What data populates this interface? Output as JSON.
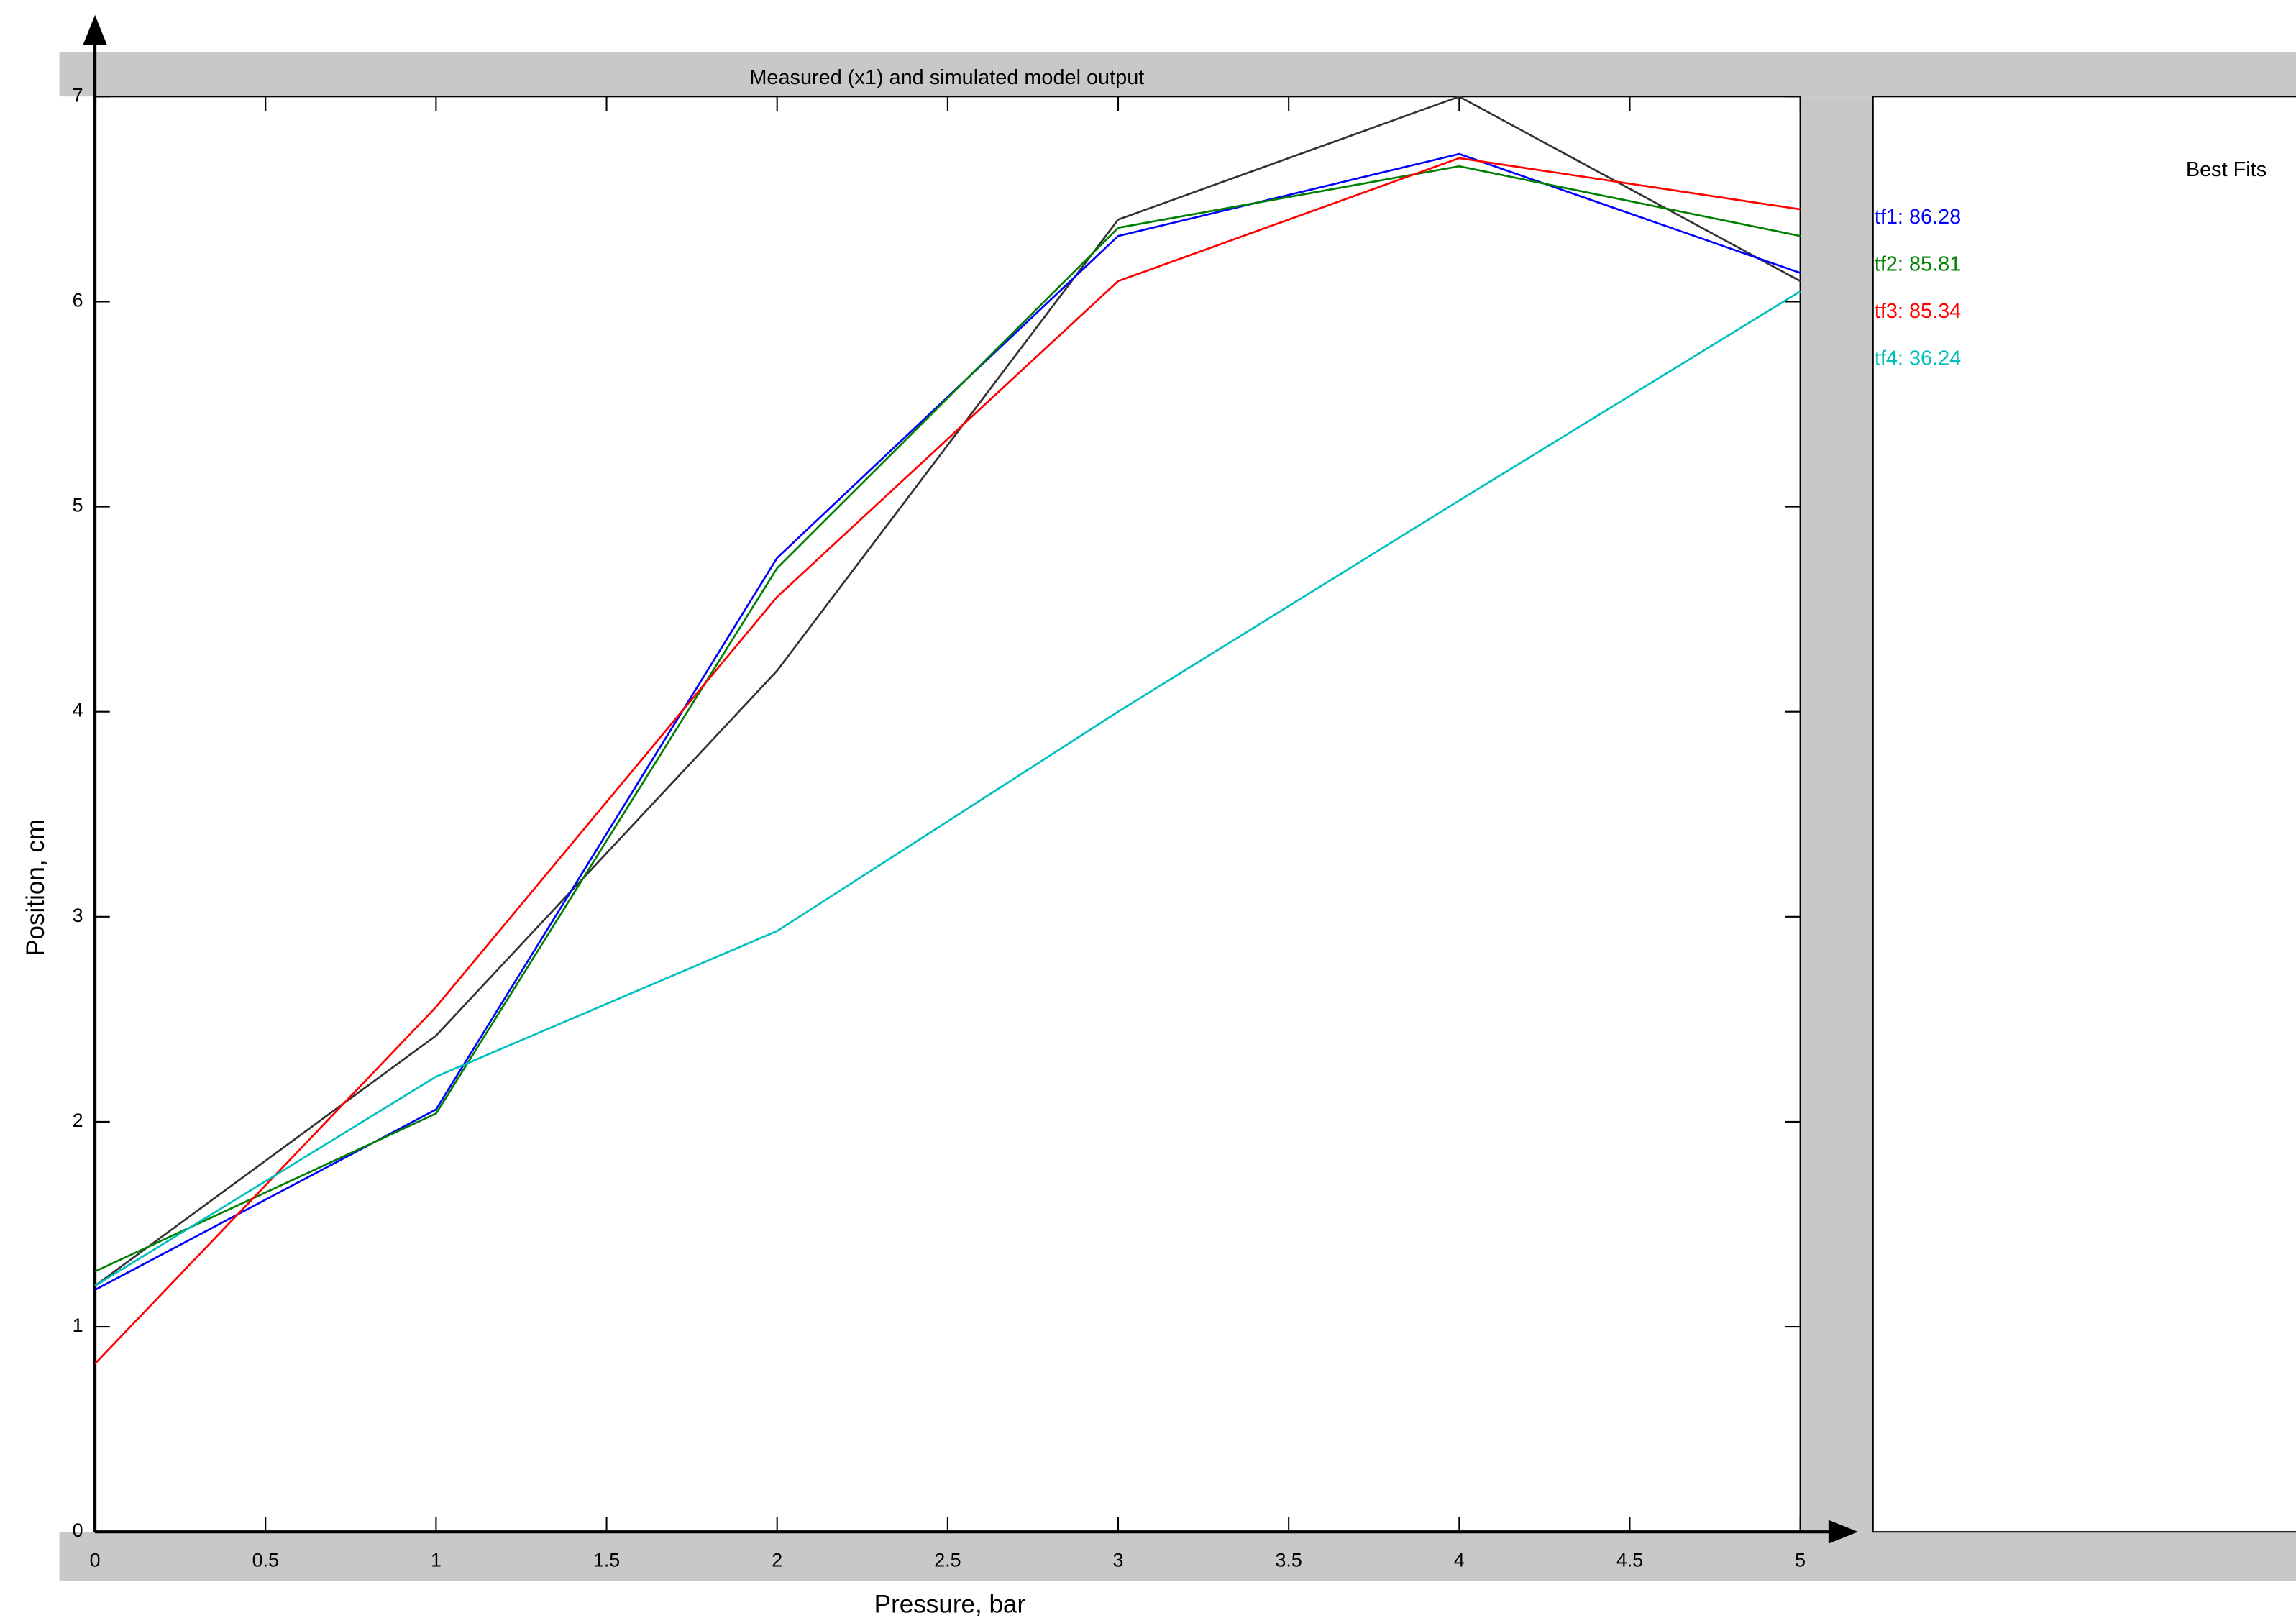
{
  "chart_data": {
    "type": "line",
    "title": "Measured (x1) and simulated model output",
    "xlabel": "Pressure, bar",
    "ylabel": "Position, cm",
    "legend_title": "Best Fits",
    "x": [
      0,
      1,
      2,
      3,
      4,
      5
    ],
    "series": [
      {
        "color": "#333333",
        "values": [
          1.2,
          2.42,
          4.2,
          6.4,
          7.0,
          6.1
        ]
      },
      {
        "name": "tf1: 86.28",
        "color": "#0000ff",
        "values": [
          1.18,
          2.06,
          4.75,
          6.32,
          6.72,
          6.14
        ]
      },
      {
        "name": "tf2: 85.81",
        "color": "#008000",
        "values": [
          1.27,
          2.04,
          4.7,
          6.36,
          6.66,
          6.32
        ]
      },
      {
        "name": "tf3: 85.34",
        "color": "#ff0000",
        "values": [
          0.82,
          2.56,
          4.56,
          6.1,
          6.7,
          6.45
        ]
      },
      {
        "name": "tf4: 36.24",
        "color": "#00bfbf",
        "values": [
          1.2,
          2.22,
          2.93,
          4.0,
          5.03,
          6.05
        ]
      }
    ],
    "xlim": [
      0,
      5
    ],
    "xticks": [
      0,
      0.5,
      1,
      1.5,
      2,
      2.5,
      3,
      3.5,
      4,
      4.5,
      5
    ],
    "ylim": [
      0,
      7
    ],
    "yticks": [
      0,
      1,
      2,
      3,
      4,
      5,
      6,
      7
    ],
    "grid": false
  }
}
